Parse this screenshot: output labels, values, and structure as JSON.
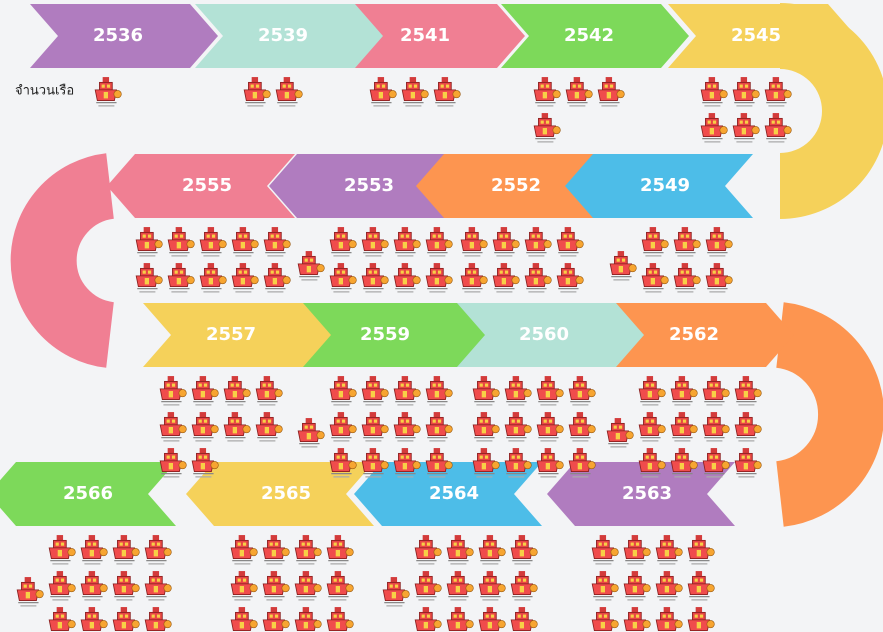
{
  "chart_data": {
    "type": "pictogram",
    "label": "จำนวนเรือ",
    "categories": [
      "2536",
      "2539",
      "2541",
      "2542",
      "2545",
      "2549",
      "2552",
      "2553",
      "2555",
      "2557",
      "2559",
      "2560",
      "2562",
      "2563",
      "2564",
      "2565",
      "2566"
    ],
    "values": [
      1,
      2,
      3,
      4,
      6,
      7,
      8,
      9,
      10,
      10,
      13,
      12,
      13,
      12,
      13,
      12,
      13
    ],
    "colors": [
      "#b07cbf",
      "#b3e2d6",
      "#f07f93",
      "#7dd95a",
      "#f5d15a",
      "#4dbde8",
      "#fd9550",
      "#b07cbf",
      "#f07f93",
      "#f5d15a",
      "#7dd95a",
      "#b3e2d6",
      "#fd9550",
      "#b07cbf",
      "#4dbde8",
      "#f5d15a",
      "#7dd95a"
    ]
  }
}
